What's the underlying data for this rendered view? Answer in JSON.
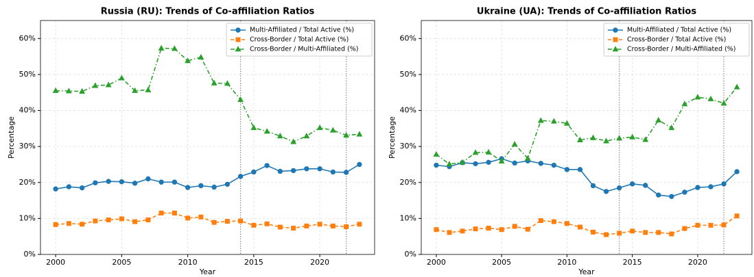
{
  "chart_data": [
    {
      "type": "line",
      "title": "Russia (RU): Trends of Co-affiliation Ratios",
      "xlabel": "Year",
      "ylabel": "Percentage",
      "x": [
        2000,
        2001,
        2002,
        2003,
        2004,
        2005,
        2006,
        2007,
        2008,
        2009,
        2010,
        2011,
        2012,
        2013,
        2014,
        2015,
        2016,
        2017,
        2018,
        2019,
        2020,
        2021,
        2022,
        2023
      ],
      "series": [
        {
          "name": "Multi-Affiliated / Total Active (%)",
          "color": "#1f77b4",
          "marker": "circle",
          "linestyle": "solid",
          "values": [
            18.2,
            18.8,
            18.5,
            19.9,
            20.3,
            20.2,
            19.8,
            21.0,
            20.1,
            20.1,
            18.6,
            19.1,
            18.7,
            19.5,
            21.7,
            22.9,
            24.7,
            23.1,
            23.3,
            23.8,
            23.8,
            22.9,
            22.8,
            25.0
          ]
        },
        {
          "name": "Cross-Border / Total Active (%)",
          "color": "#ff7f0e",
          "marker": "square",
          "linestyle": "dashed",
          "values": [
            8.3,
            8.6,
            8.4,
            9.3,
            9.6,
            9.9,
            9.1,
            9.6,
            11.5,
            11.5,
            10.1,
            10.4,
            8.9,
            9.2,
            9.3,
            8.1,
            8.5,
            7.6,
            7.3,
            7.9,
            8.4,
            7.9,
            7.7,
            8.4
          ]
        },
        {
          "name": "Cross-Border / Multi-Affiliated (%)",
          "color": "#2ca02c",
          "marker": "triangle",
          "linestyle": "dashdot",
          "values": [
            45.5,
            45.4,
            45.3,
            46.9,
            47.1,
            49.0,
            45.5,
            45.7,
            57.3,
            57.2,
            53.8,
            54.8,
            47.6,
            47.5,
            43.0,
            35.2,
            34.2,
            32.9,
            31.3,
            32.9,
            35.2,
            34.5,
            33.1,
            33.4
          ]
        }
      ],
      "xlim": [
        1998.85,
        2024.15
      ],
      "ylim": [
        0,
        65
      ],
      "xticks": [
        2000,
        2005,
        2010,
        2015,
        2020
      ],
      "yticks": [
        {
          "value": 0,
          "label": "0%"
        },
        {
          "value": 10,
          "label": "10%"
        },
        {
          "value": 20,
          "label": "20%"
        },
        {
          "value": 30,
          "label": "30%"
        },
        {
          "value": 40,
          "label": "40%"
        },
        {
          "value": 50,
          "label": "50%"
        },
        {
          "value": 60,
          "label": "60%"
        }
      ],
      "vlines": [
        2014,
        2022
      ],
      "grid": true,
      "legend": "upper right"
    },
    {
      "type": "line",
      "title": "Ukraine (UA): Trends of Co-affiliation Ratios",
      "xlabel": "Year",
      "ylabel": "Percentage",
      "x": [
        2000,
        2001,
        2002,
        2003,
        2004,
        2005,
        2006,
        2007,
        2008,
        2009,
        2010,
        2011,
        2012,
        2013,
        2014,
        2015,
        2016,
        2017,
        2018,
        2019,
        2020,
        2021,
        2022,
        2023
      ],
      "series": [
        {
          "name": "Multi-Affiliated / Total Active (%)",
          "color": "#1f77b4",
          "marker": "circle",
          "linestyle": "solid",
          "values": [
            24.8,
            24.4,
            25.5,
            25.2,
            25.6,
            26.6,
            25.4,
            26.0,
            25.3,
            24.8,
            23.6,
            23.6,
            19.1,
            17.5,
            18.5,
            19.6,
            19.2,
            16.5,
            16.1,
            17.3,
            18.6,
            18.8,
            19.6,
            23.0
          ]
        },
        {
          "name": "Cross-Border / Total Active (%)",
          "color": "#ff7f0e",
          "marker": "square",
          "linestyle": "dashed",
          "values": [
            6.9,
            6.1,
            6.5,
            7.1,
            7.3,
            6.9,
            7.8,
            7.0,
            9.4,
            9.1,
            8.6,
            7.6,
            6.2,
            5.5,
            5.9,
            6.5,
            6.1,
            6.1,
            5.7,
            7.2,
            8.1,
            8.1,
            8.2,
            10.7
          ]
        },
        {
          "name": "Cross-Border / Multi-Affiliated (%)",
          "color": "#2ca02c",
          "marker": "triangle",
          "linestyle": "dashdot",
          "values": [
            27.8,
            25.1,
            25.6,
            28.3,
            28.4,
            25.9,
            30.6,
            26.7,
            37.2,
            37.0,
            36.4,
            31.8,
            32.4,
            31.5,
            32.3,
            32.6,
            31.9,
            37.3,
            35.2,
            41.8,
            43.7,
            43.2,
            42.0,
            46.5
          ]
        }
      ],
      "xlim": [
        1998.85,
        2024.15
      ],
      "ylim": [
        0,
        65
      ],
      "xticks": [
        2000,
        2005,
        2010,
        2015,
        2020
      ],
      "yticks": [
        {
          "value": 0,
          "label": "0%"
        },
        {
          "value": 10,
          "label": "10%"
        },
        {
          "value": 20,
          "label": "20%"
        },
        {
          "value": 30,
          "label": "30%"
        },
        {
          "value": 40,
          "label": "40%"
        },
        {
          "value": 50,
          "label": "50%"
        },
        {
          "value": 60,
          "label": "60%"
        }
      ],
      "vlines": [
        2014,
        2022
      ],
      "grid": true,
      "legend": "upper right"
    }
  ]
}
